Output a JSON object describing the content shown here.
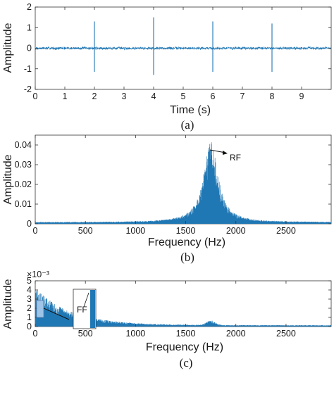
{
  "chart_data": [
    {
      "type": "line",
      "panel": "(a)",
      "caption": "(a)",
      "xlabel": "Time (s)",
      "ylabel": "Amplitude",
      "xlim": [
        0,
        10
      ],
      "ylim": [
        -2,
        2
      ],
      "x_ticks": [
        0,
        1,
        2,
        3,
        4,
        5,
        6,
        7,
        8,
        9
      ],
      "y_ticks": [
        -2,
        -1,
        0,
        1,
        2
      ],
      "color": "#1f77b4",
      "noise_level": 0.05,
      "impulses": [
        {
          "x": 2,
          "y_max": 1.3,
          "y_min": -1.15
        },
        {
          "x": 4,
          "y_max": 1.5,
          "y_min": -1.3
        },
        {
          "x": 6,
          "y_max": 1.3,
          "y_min": -1.15
        },
        {
          "x": 8,
          "y_max": 1.2,
          "y_min": -1.15
        }
      ]
    },
    {
      "type": "area",
      "panel": "(b)",
      "caption": "(b)",
      "xlabel": "Frequency (Hz)",
      "ylabel": "Amplitude",
      "xlim": [
        0,
        2950
      ],
      "ylim": [
        0,
        0.045
      ],
      "x_ticks": [
        0,
        500,
        1000,
        1500,
        2000,
        2500
      ],
      "y_ticks": [
        0,
        0.01,
        0.02,
        0.03,
        0.04
      ],
      "y_tick_labels": [
        "0",
        "0.01",
        "0.02",
        "0.03",
        "0.04"
      ],
      "color": "#1f77b4",
      "peak": {
        "x": 1750,
        "y": 0.041
      },
      "baseline": 0.0008,
      "annotation": {
        "text": "RF",
        "at": [
          1750,
          0.041
        ]
      }
    },
    {
      "type": "area",
      "panel": "(c)",
      "caption": "(c)",
      "xlabel": "Frequency (Hz)",
      "ylabel": "Amplitude",
      "xlim": [
        0,
        2950
      ],
      "ylim": [
        0,
        0.005
      ],
      "scale_label": "×10⁻³",
      "x_ticks": [
        0,
        500,
        1000,
        1500,
        2000,
        2500
      ],
      "y_ticks": [
        0,
        1,
        2,
        3,
        4,
        5
      ],
      "color": "#1f77b4",
      "start_value": 4.3,
      "decay_scale_hz": 350,
      "floor_value": 0.15,
      "secondary_bump": {
        "x": 1750,
        "y": 0.5
      },
      "inset": {
        "label": "FF",
        "zoom_x_range": [
          0,
          60
        ],
        "zoom_y_range": [
          0.7,
          2.7
        ]
      }
    }
  ]
}
